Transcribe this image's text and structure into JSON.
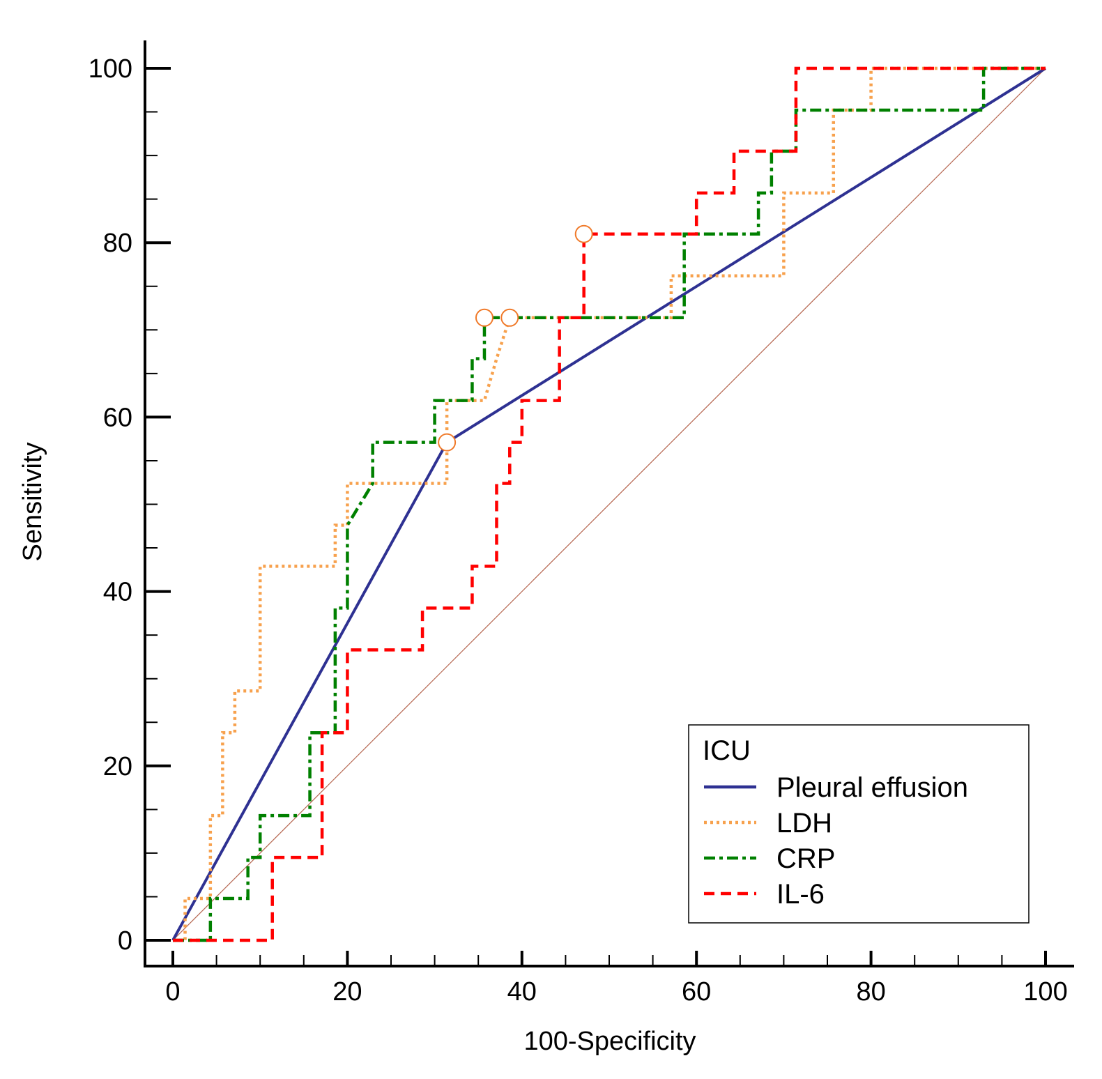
{
  "chart_data": {
    "type": "line",
    "title": "",
    "xlabel": "100-Specificity",
    "ylabel": "Sensitivity",
    "xlim": [
      0,
      100
    ],
    "ylim": [
      0,
      100
    ],
    "x_ticks": [
      "0",
      "20",
      "40",
      "60",
      "80",
      "100"
    ],
    "y_ticks": [
      "0",
      "20",
      "40",
      "60",
      "80",
      "100"
    ],
    "minor_tick_step": 5,
    "legend": {
      "title": "ICU",
      "position": "bottom-right"
    },
    "reference_line": {
      "name": "Chance diagonal",
      "color": "#b5654f",
      "points": [
        [
          0,
          0
        ],
        [
          100,
          100
        ]
      ]
    },
    "series": [
      {
        "name": "Pleural effusion",
        "color": "#2e3192",
        "dash": "solid",
        "points": [
          [
            0,
            0
          ],
          [
            31.4,
            57.1
          ],
          [
            100,
            100
          ]
        ],
        "markers": [
          [
            31.4,
            57.1
          ]
        ]
      },
      {
        "name": "LDH",
        "color": "#f7a14d",
        "dash": "dotted",
        "points": [
          [
            0,
            0
          ],
          [
            1.4,
            0
          ],
          [
            1.4,
            4.8
          ],
          [
            4.3,
            4.8
          ],
          [
            4.3,
            14.3
          ],
          [
            5.7,
            14.3
          ],
          [
            5.7,
            23.8
          ],
          [
            7.1,
            23.8
          ],
          [
            7.1,
            28.6
          ],
          [
            10,
            28.6
          ],
          [
            10,
            42.9
          ],
          [
            18.6,
            42.9
          ],
          [
            18.6,
            47.6
          ],
          [
            20,
            47.6
          ],
          [
            20,
            52.4
          ],
          [
            31.4,
            52.4
          ],
          [
            31.4,
            61.9
          ],
          [
            35.7,
            61.9
          ],
          [
            37.1,
            66.7
          ],
          [
            38.6,
            71.4
          ],
          [
            57.1,
            71.4
          ],
          [
            57.1,
            76.2
          ],
          [
            70,
            76.2
          ],
          [
            70,
            85.7
          ],
          [
            75.7,
            85.7
          ],
          [
            75.7,
            95.2
          ],
          [
            80,
            95.2
          ],
          [
            80,
            100
          ],
          [
            100,
            100
          ]
        ],
        "markers": [
          [
            38.6,
            71.4
          ]
        ]
      },
      {
        "name": "CRP",
        "color": "#008000",
        "dash": "dashdot",
        "points": [
          [
            0,
            0
          ],
          [
            4.3,
            0
          ],
          [
            4.3,
            4.8
          ],
          [
            8.6,
            4.8
          ],
          [
            8.6,
            9.5
          ],
          [
            10,
            9.5
          ],
          [
            10,
            14.3
          ],
          [
            15.7,
            14.3
          ],
          [
            15.7,
            23.8
          ],
          [
            18.6,
            23.8
          ],
          [
            18.6,
            38.1
          ],
          [
            20,
            38.1
          ],
          [
            20,
            47.6
          ],
          [
            22.9,
            52.4
          ],
          [
            22.9,
            57.1
          ],
          [
            30,
            57.1
          ],
          [
            30,
            61.9
          ],
          [
            34.3,
            61.9
          ],
          [
            34.3,
            66.7
          ],
          [
            35.7,
            66.7
          ],
          [
            35.7,
            71.4
          ],
          [
            58.6,
            71.4
          ],
          [
            58.6,
            81
          ],
          [
            67.1,
            81
          ],
          [
            67.1,
            85.7
          ],
          [
            68.6,
            85.7
          ],
          [
            68.6,
            90.5
          ],
          [
            71.4,
            90.5
          ],
          [
            71.4,
            95.2
          ],
          [
            92.9,
            95.2
          ],
          [
            92.9,
            100
          ],
          [
            100,
            100
          ]
        ],
        "markers": [
          [
            35.7,
            71.4
          ]
        ]
      },
      {
        "name": "IL-6",
        "color": "#ff0000",
        "dash": "dashed",
        "points": [
          [
            0,
            0
          ],
          [
            11.4,
            0
          ],
          [
            11.4,
            9.5
          ],
          [
            17.1,
            9.5
          ],
          [
            17.1,
            23.8
          ],
          [
            20,
            23.8
          ],
          [
            20,
            33.3
          ],
          [
            28.6,
            33.3
          ],
          [
            28.6,
            38.1
          ],
          [
            34.3,
            38.1
          ],
          [
            34.3,
            42.9
          ],
          [
            37.1,
            42.9
          ],
          [
            37.1,
            52.4
          ],
          [
            38.6,
            52.4
          ],
          [
            38.6,
            57.1
          ],
          [
            40,
            57.1
          ],
          [
            40,
            61.9
          ],
          [
            44.3,
            61.9
          ],
          [
            44.3,
            71.4
          ],
          [
            47.1,
            71.4
          ],
          [
            47.1,
            81
          ],
          [
            60,
            81
          ],
          [
            60,
            85.7
          ],
          [
            64.3,
            85.7
          ],
          [
            64.3,
            90.5
          ],
          [
            71.4,
            90.5
          ],
          [
            71.4,
            100
          ],
          [
            100,
            100
          ]
        ],
        "markers": [
          [
            47.1,
            81
          ]
        ]
      }
    ]
  }
}
